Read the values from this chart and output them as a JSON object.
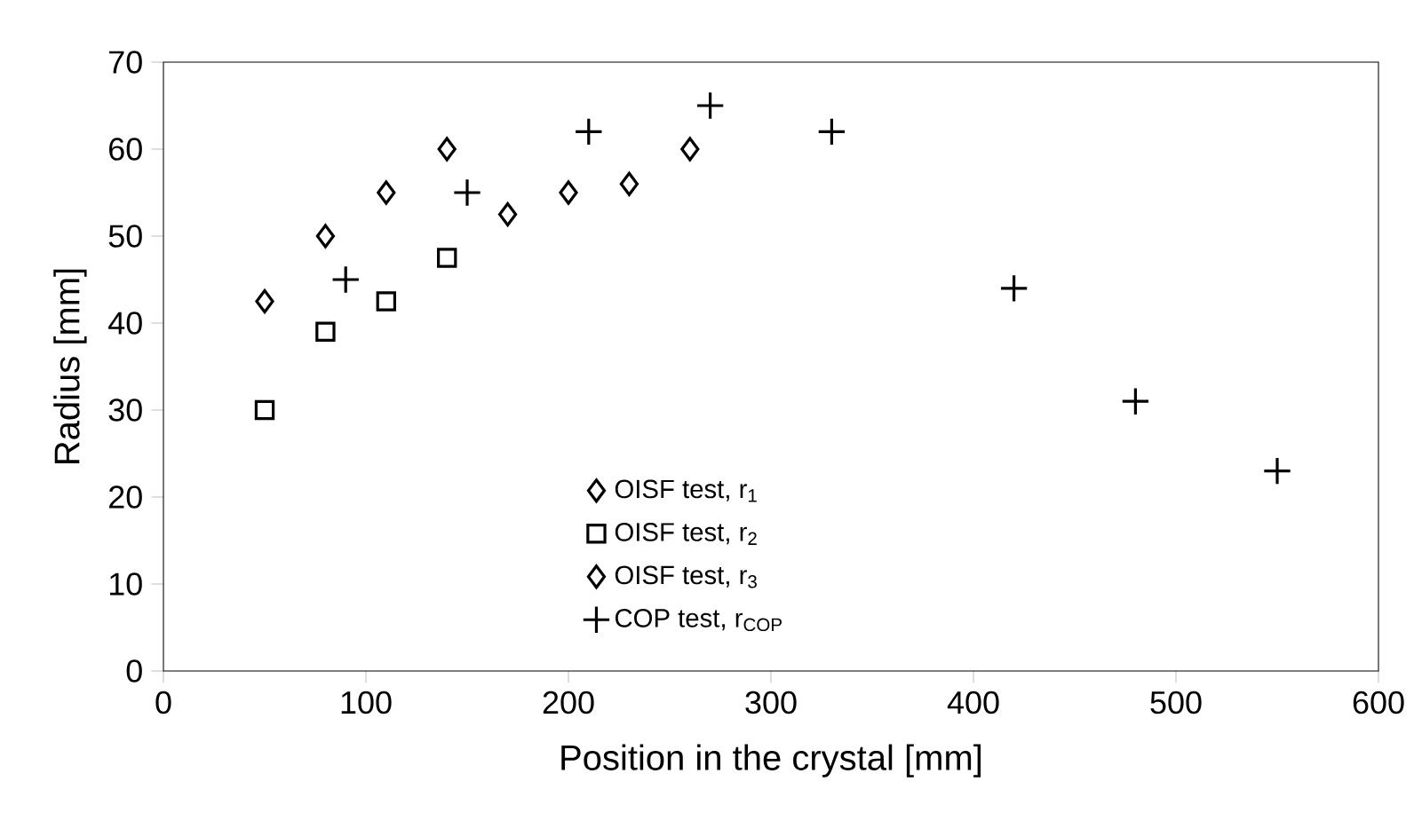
{
  "chart_data": {
    "type": "scatter",
    "xlabel": "Position in the crystal  [mm]",
    "ylabel": "Radius  [mm]",
    "xlim": [
      0,
      600
    ],
    "ylim": [
      0,
      70
    ],
    "xticks": [
      0,
      100,
      200,
      300,
      400,
      500,
      600
    ],
    "yticks": [
      0,
      10,
      20,
      30,
      40,
      50,
      60,
      70
    ],
    "grid": false,
    "legend": "bottom",
    "series": [
      {
        "name": "OISF test, r$_{1}$",
        "color": "#000000",
        "marker": "diamond",
        "x": [
          50,
          80,
          110,
          140
        ],
        "values": [
          42.5,
          50,
          55,
          60
        ]
      },
      {
        "name": "OISF test, r$_{2}$",
        "color": "#000000",
        "marker": "square",
        "x": [
          50,
          80,
          110,
          140
        ],
        "values": [
          30,
          39,
          42.5,
          47.5
        ]
      },
      {
        "name": "OISF test, r$_{3}$",
        "color": "#000000",
        "marker": "diamond",
        "x": [
          170,
          200,
          230,
          260
        ],
        "values": [
          52.5,
          55,
          56,
          60
        ]
      },
      {
        "name": "COP test, r$_{COP}$",
        "color": "#000000",
        "marker": "cross",
        "x": [
          90,
          150,
          210,
          270,
          330,
          420,
          480,
          550
        ],
        "values": [
          45,
          55,
          62,
          65,
          62,
          44,
          31,
          23
        ]
      }
    ]
  }
}
